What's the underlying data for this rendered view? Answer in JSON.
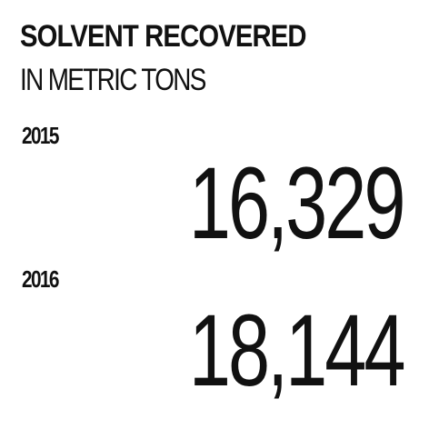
{
  "header": {
    "title": "SOLVENT RECOVERED",
    "subtitle": "IN METRIC TONS"
  },
  "stats": [
    {
      "year": "2015",
      "value": "16,329"
    },
    {
      "year": "2016",
      "value": "18,144"
    }
  ]
}
